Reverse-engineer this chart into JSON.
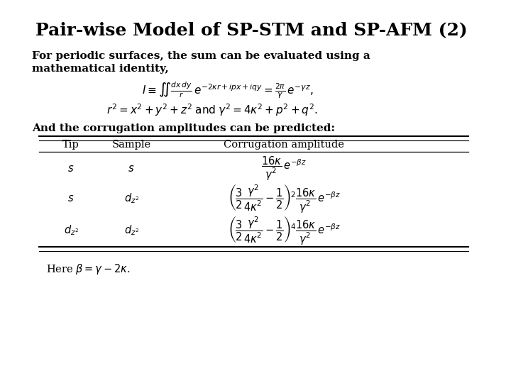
{
  "title": "Pair-wise Model of SP-STM and SP-AFM (2)",
  "intro_line1": "For periodic surfaces, the sum can be evaluated using a",
  "intro_line2": "mathematical identity,",
  "corrugation_text": "And the corrugation amplitudes can be predicted:",
  "footnote": "Here $\\beta = \\gamma - 2\\kappa$.",
  "bg_color": "#ffffff",
  "text_color": "#000000",
  "title_fontsize": 18,
  "body_fontsize": 11,
  "eq_fontsize": 11,
  "table_fontsize": 10.5
}
